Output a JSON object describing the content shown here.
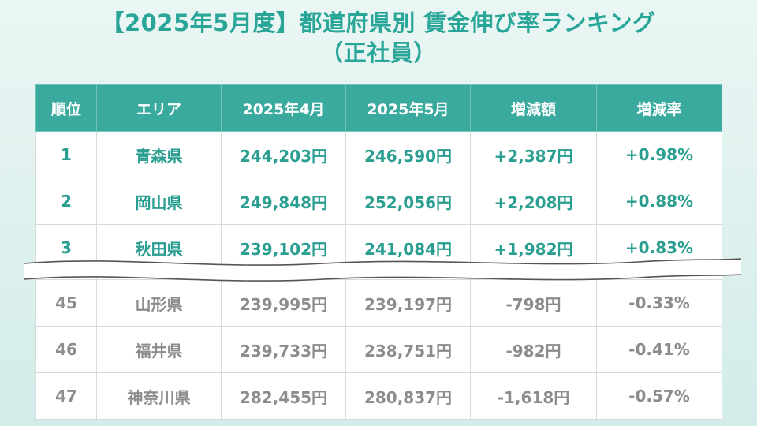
{
  "title": {
    "line1": "【2025年5月度】都道府県別 賃金伸び率ランキング",
    "line2": "（正社員）"
  },
  "table": {
    "headers": [
      "順位",
      "エリア",
      "2025年4月",
      "2025年5月",
      "増減額",
      "増減率"
    ],
    "top_rows": [
      {
        "rank": "1",
        "area": "青森県",
        "apr": "244,203円",
        "may": "246,590円",
        "diff": "+2,387円",
        "rate": "+0.98%"
      },
      {
        "rank": "2",
        "area": "岡山県",
        "apr": "249,848円",
        "may": "252,056円",
        "diff": "+2,208円",
        "rate": "+0.88%"
      },
      {
        "rank": "3",
        "area": "秋田県",
        "apr": "239,102円",
        "may": "241,084円",
        "diff": "+1,982円",
        "rate": "+0.83%"
      }
    ],
    "bottom_rows": [
      {
        "rank": "45",
        "area": "山形県",
        "apr": "239,995円",
        "may": "239,197円",
        "diff": "-798円",
        "rate": "-0.33%"
      },
      {
        "rank": "46",
        "area": "福井県",
        "apr": "239,733円",
        "may": "238,751円",
        "diff": "-982円",
        "rate": "-0.41%"
      },
      {
        "rank": "47",
        "area": "神奈川県",
        "apr": "282,455円",
        "may": "280,837円",
        "diff": "-1,618円",
        "rate": "-0.57%"
      }
    ]
  },
  "colors": {
    "accent": "#2aa699",
    "header_bg": "#3aaa9e",
    "top_text": "#2a9e90",
    "bottom_text": "#8c8c8c"
  }
}
